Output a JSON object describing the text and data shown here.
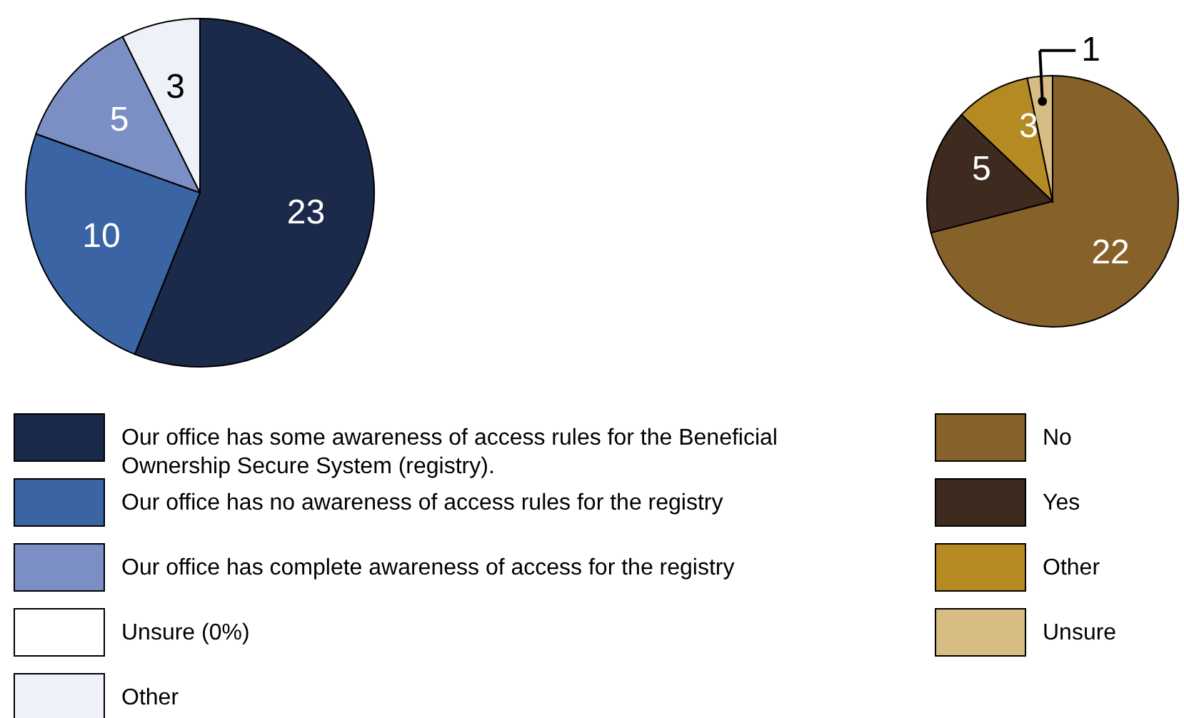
{
  "chart_data": [
    {
      "type": "pie",
      "categories": [
        "Our office has some awareness of access rules for the Beneficial Ownership Secure System (registry).",
        "Our office has no awareness of access rules for the registry",
        "Our office has complete awareness of access for the registry",
        "Unsure (0%)",
        "Other"
      ],
      "values": [
        23,
        10,
        5,
        0,
        3
      ],
      "colors": [
        "#1b2a4a",
        "#3a64a4",
        "#7b8fc4",
        "#ffffff",
        "#eef2f8"
      ],
      "value_labels": [
        "23",
        "10",
        "5",
        null,
        "3"
      ],
      "legend": "bottom"
    },
    {
      "type": "pie",
      "categories": [
        "No",
        "Yes",
        "Other",
        "Unsure"
      ],
      "values": [
        22,
        5,
        3,
        1
      ],
      "colors": [
        "#86622a",
        "#3e2a1e",
        "#b58a22",
        "#d7bc84"
      ],
      "value_labels": [
        "22",
        "5",
        "3",
        "1"
      ],
      "legend": "bottom"
    }
  ]
}
